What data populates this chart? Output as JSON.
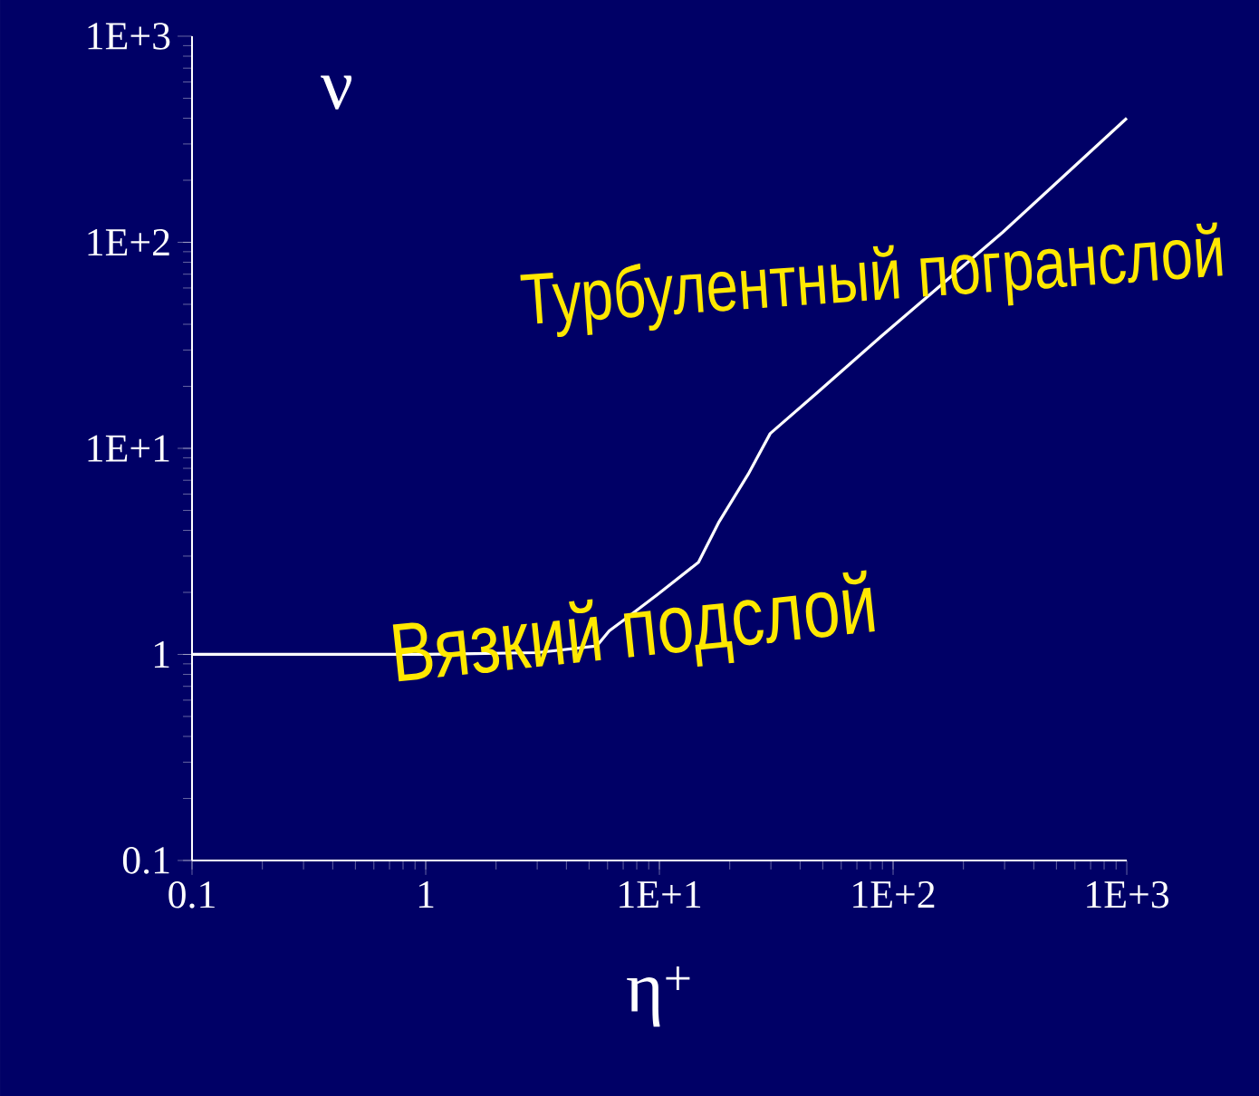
{
  "chart_data": {
    "type": "line",
    "xlabel": "η$^{+}$",
    "ylabel": "ν",
    "log": "xy",
    "xlim": [
      0.1,
      1000
    ],
    "ylim": [
      0.1,
      1000
    ],
    "xticks": [
      0.1,
      1,
      {
        "value": 10,
        "label": "1E+1"
      },
      {
        "value": 100,
        "label": "1E+2"
      },
      {
        "value": 1000,
        "label": "1E+3"
      }
    ],
    "yticks": [
      0.1,
      1,
      {
        "value": 10,
        "label": "1E+1"
      },
      {
        "value": 100,
        "label": "1E+2"
      },
      {
        "value": 1000,
        "label": "1E+3"
      }
    ],
    "x": [
      0.1,
      1,
      3,
      5.4,
      6.1,
      7.5,
      9.8,
      14.7,
      18,
      24,
      29.8,
      47,
      89,
      295,
      1000
    ],
    "series": [
      {
        "color": "#ffffff",
        "values": [
          1,
          1,
          1.02,
          1.1,
          1.3,
          1.55,
          1.95,
          2.8,
          4.4,
          7.5,
          11.8,
          18.5,
          35,
          112,
          400
        ]
      }
    ],
    "annotations": [
      "Вязкий подслой",
      "Турбулентный погранслой"
    ],
    "grid": false
  }
}
